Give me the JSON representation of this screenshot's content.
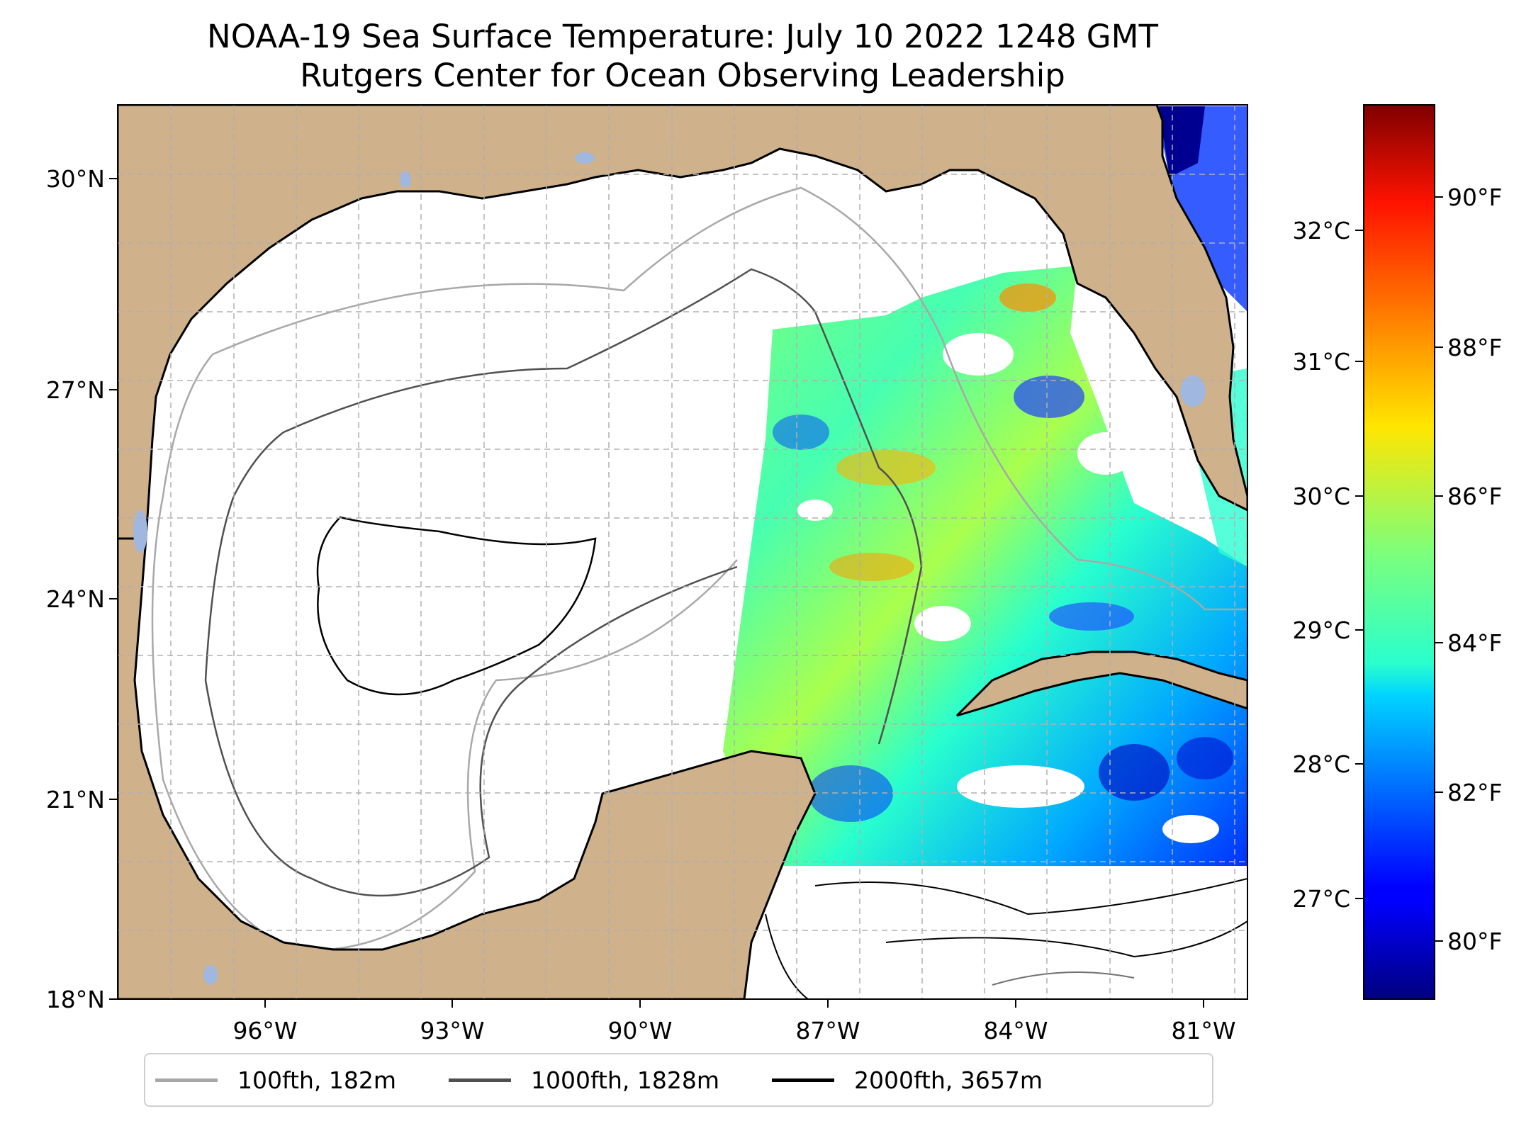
{
  "title": {
    "line1": "NOAA-19 Sea Surface Temperature: July 10 2022 1248 GMT",
    "line2": "Rutgers Center for Ocean Observing Leadership"
  },
  "map": {
    "lon_range": [
      -98.0,
      -80.2
    ],
    "lat_range": [
      18.0,
      31.0
    ],
    "x_ticks": [
      "96°W",
      "93°W",
      "90°W",
      "87°W",
      "84°W",
      "81°W"
    ],
    "y_ticks": [
      "18°N",
      "21°N",
      "24°N",
      "27°N",
      "30°N"
    ],
    "land_color": "#cfb18b",
    "lake_color": "#a0b8e0",
    "gridlines": true
  },
  "colorbar": {
    "celsius_ticks": [
      "27°C",
      "28°C",
      "29°C",
      "30°C",
      "31°C",
      "32°C"
    ],
    "fahrenheit_ticks": [
      "80°F",
      "82°F",
      "84°F",
      "86°F",
      "88°F",
      "90°F"
    ],
    "colormap": "jet"
  },
  "legend": [
    {
      "label": "100fth, 182m",
      "color": "#a8a8a8"
    },
    {
      "label": "1000fth, 1828m",
      "color": "#505050"
    },
    {
      "label": "2000fth, 3657m",
      "color": "#000000"
    }
  ]
}
